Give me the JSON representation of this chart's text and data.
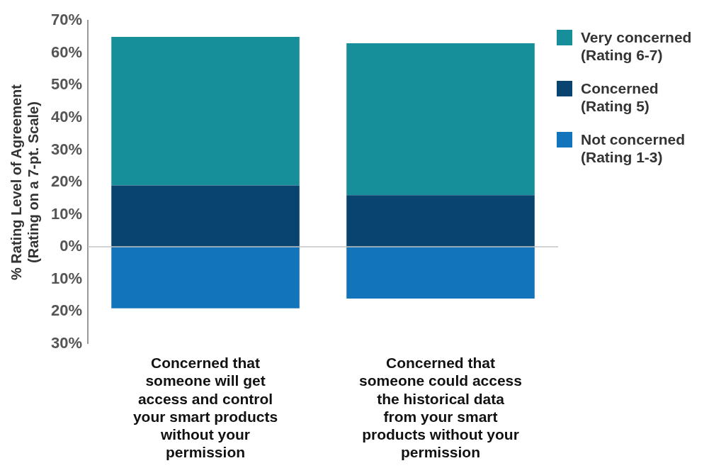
{
  "chart_data": {
    "type": "bar",
    "stacked": true,
    "ylabel": "% Rating Level of Agreement\n(Rating on a 7-pt. Scale)",
    "categories": [
      "Concerned that someone will get access and control your smart products without your permission",
      "Concerned that someone could access the historical data from your smart products without your permission"
    ],
    "series": [
      {
        "name": "Not concerned\n(Rating 1-3)",
        "color": "#1275bc",
        "values": [
          -19,
          -16
        ]
      },
      {
        "name": "Concerned\n(Rating 5)",
        "color": "#09436f",
        "values": [
          19,
          16
        ]
      },
      {
        "name": "Very concerned\n(Rating 6-7)",
        "color": "#168f9b",
        "values": [
          46,
          47
        ]
      }
    ],
    "ylim": [
      -30,
      70
    ],
    "yticks": [
      {
        "value": -30,
        "label": "30%"
      },
      {
        "value": -20,
        "label": "20%"
      },
      {
        "value": -10,
        "label": "10%"
      },
      {
        "value": 0,
        "label": "0%"
      },
      {
        "value": 10,
        "label": "10%"
      },
      {
        "value": 20,
        "label": "20%"
      },
      {
        "value": 30,
        "label": "30%"
      },
      {
        "value": 40,
        "label": "40%"
      },
      {
        "value": 50,
        "label": "50%"
      },
      {
        "value": 60,
        "label": "60%"
      },
      {
        "value": 70,
        "label": "70%"
      }
    ],
    "ref_lines": [
      {
        "axis": "y",
        "value": 0,
        "color": "#c4c4c4"
      }
    ],
    "grid": false,
    "legend": "top right"
  }
}
